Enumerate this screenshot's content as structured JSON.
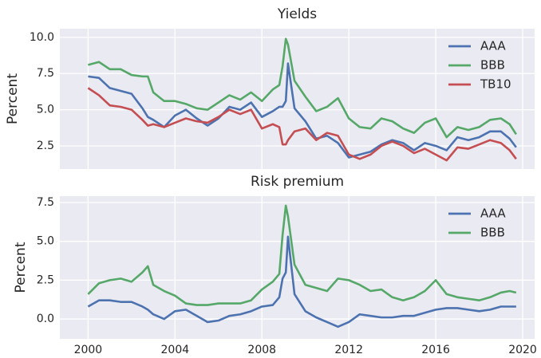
{
  "chart_data": [
    {
      "type": "line",
      "title": "Yields",
      "y_label": "Percent",
      "legend": "upper right",
      "grid": true,
      "x": [
        2000,
        2000.5,
        2001,
        2001.5,
        2002,
        2002.5,
        2002.75,
        2003,
        2003.5,
        2004,
        2004.5,
        2005,
        2005.5,
        2006,
        2006.5,
        2007,
        2007.5,
        2008,
        2008.5,
        2008.8,
        2008.95,
        2009.1,
        2009.2,
        2009.5,
        2010,
        2010.5,
        2011,
        2011.5,
        2012,
        2012.5,
        2013,
        2013.5,
        2014,
        2014.5,
        2015,
        2015.5,
        2016,
        2016.5,
        2017,
        2017.5,
        2018,
        2018.5,
        2019,
        2019.4,
        2019.7
      ],
      "xlim": [
        1998.7,
        2020.55
      ],
      "ylim": [
        0.9,
        10.6
      ],
      "yticks": [
        {
          "value": 2.5,
          "label": "2.5"
        },
        {
          "value": 5,
          "label": "5.0"
        },
        {
          "value": 7.5,
          "label": "7.5"
        },
        {
          "value": 10,
          "label": "10.0"
        }
      ],
      "series": [
        {
          "name": "AAA",
          "color": "#4c72b0",
          "values": [
            7.3,
            7.2,
            6.5,
            6.3,
            6.1,
            5.1,
            4.5,
            4.3,
            3.8,
            4.6,
            5.0,
            4.4,
            3.9,
            4.4,
            5.2,
            5.0,
            5.5,
            4.5,
            4.9,
            5.2,
            5.2,
            5.6,
            8.2,
            5.1,
            4.2,
            3.0,
            3.2,
            2.7,
            1.7,
            1.9,
            2.1,
            2.6,
            2.9,
            2.7,
            2.2,
            2.7,
            2.5,
            2.2,
            3.1,
            2.9,
            3.1,
            3.5,
            3.5,
            3.0,
            2.4
          ]
        },
        {
          "name": "BBB",
          "color": "#55a868",
          "values": [
            8.1,
            8.3,
            7.8,
            7.8,
            7.4,
            7.3,
            7.3,
            6.2,
            5.6,
            5.6,
            5.4,
            5.1,
            5.0,
            5.5,
            6.0,
            5.7,
            6.2,
            5.6,
            6.4,
            6.7,
            8.0,
            9.9,
            9.5,
            7.0,
            5.9,
            4.9,
            5.2,
            5.8,
            4.4,
            3.8,
            3.7,
            4.4,
            4.2,
            3.7,
            3.4,
            4.1,
            4.4,
            3.1,
            3.8,
            3.6,
            3.8,
            4.3,
            4.4,
            4.0,
            3.3
          ]
        },
        {
          "name": "TB10",
          "color": "#c44e52",
          "values": [
            6.5,
            6.0,
            5.3,
            5.2,
            5.0,
            4.3,
            3.9,
            4.0,
            3.8,
            4.1,
            4.4,
            4.2,
            4.1,
            4.5,
            5.0,
            4.7,
            5.0,
            3.7,
            4.0,
            3.8,
            2.6,
            2.6,
            2.9,
            3.5,
            3.7,
            2.9,
            3.4,
            3.2,
            1.9,
            1.6,
            1.9,
            2.5,
            2.8,
            2.5,
            2.0,
            2.3,
            1.9,
            1.5,
            2.4,
            2.3,
            2.6,
            2.9,
            2.7,
            2.2,
            1.6
          ]
        }
      ]
    },
    {
      "type": "line",
      "title": "Risk premium",
      "y_label": "Percent",
      "legend": "upper right",
      "grid": true,
      "x": [
        2000,
        2000.5,
        2001,
        2001.5,
        2002,
        2002.5,
        2002.75,
        2003,
        2003.5,
        2004,
        2004.5,
        2005,
        2005.5,
        2006,
        2006.5,
        2007,
        2007.5,
        2008,
        2008.5,
        2008.8,
        2008.95,
        2009.1,
        2009.2,
        2009.5,
        2010,
        2010.5,
        2011,
        2011.5,
        2012,
        2012.5,
        2013,
        2013.5,
        2014,
        2014.5,
        2015,
        2015.5,
        2016,
        2016.5,
        2017,
        2017.5,
        2018,
        2018.5,
        2019,
        2019.4,
        2019.7
      ],
      "xlim": [
        1998.7,
        2020.55
      ],
      "xticks": [
        2000,
        2004,
        2008,
        2012,
        2016,
        2020
      ],
      "ylim": [
        -1.28,
        7.91
      ],
      "yticks": [
        {
          "value": 0,
          "label": "0.0"
        },
        {
          "value": 2.5,
          "label": "2.5"
        },
        {
          "value": 5,
          "label": "5.0"
        },
        {
          "value": 7.5,
          "label": "7.5"
        }
      ],
      "series": [
        {
          "name": "AAA",
          "color": "#4c72b0",
          "values": [
            0.8,
            1.2,
            1.2,
            1.1,
            1.1,
            0.8,
            0.6,
            0.3,
            0.0,
            0.5,
            0.6,
            0.2,
            -0.2,
            -0.1,
            0.2,
            0.3,
            0.5,
            0.8,
            0.9,
            1.4,
            2.6,
            3.0,
            5.3,
            1.6,
            0.5,
            0.1,
            -0.2,
            -0.5,
            -0.2,
            0.3,
            0.2,
            0.1,
            0.1,
            0.2,
            0.2,
            0.4,
            0.6,
            0.7,
            0.7,
            0.6,
            0.5,
            0.6,
            0.8,
            0.8,
            0.8
          ]
        },
        {
          "name": "BBB",
          "color": "#55a868",
          "values": [
            1.6,
            2.3,
            2.5,
            2.6,
            2.4,
            3.0,
            3.4,
            2.2,
            1.8,
            1.5,
            1.0,
            0.9,
            0.9,
            1.0,
            1.0,
            1.0,
            1.2,
            1.9,
            2.4,
            2.9,
            5.4,
            7.3,
            6.6,
            3.5,
            2.2,
            2.0,
            1.8,
            2.6,
            2.5,
            2.2,
            1.8,
            1.9,
            1.4,
            1.2,
            1.4,
            1.8,
            2.5,
            1.6,
            1.4,
            1.3,
            1.2,
            1.4,
            1.7,
            1.8,
            1.7
          ]
        }
      ]
    }
  ]
}
